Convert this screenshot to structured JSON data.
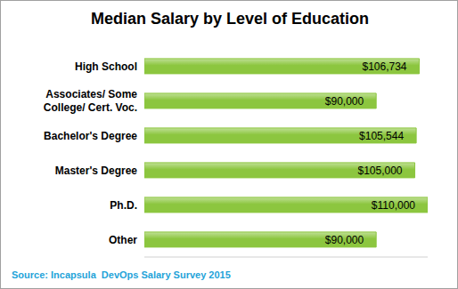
{
  "chart_data": {
    "type": "bar",
    "title": "Median Salary by Level of Education",
    "subtitle": "Source: Incapsula  DevOps Salary Survey 2015",
    "orientation": "horizontal",
    "categories": [
      "High School",
      "Associates/ Some College/ Cert. Voc.",
      "Bachelor's Degree",
      "Master's Degree",
      "Ph.D.",
      "Other"
    ],
    "values": [
      106734,
      90000,
      105544,
      105000,
      110000,
      90000
    ],
    "value_labels": [
      "$106,734",
      "$90,000",
      "$105,544",
      "$105,000",
      "$110,000",
      "$90,000"
    ],
    "data_labels": true,
    "color": "#8cc63f",
    "xlim": [
      0,
      110000
    ],
    "tick_labels": "y",
    "grid": false
  }
}
